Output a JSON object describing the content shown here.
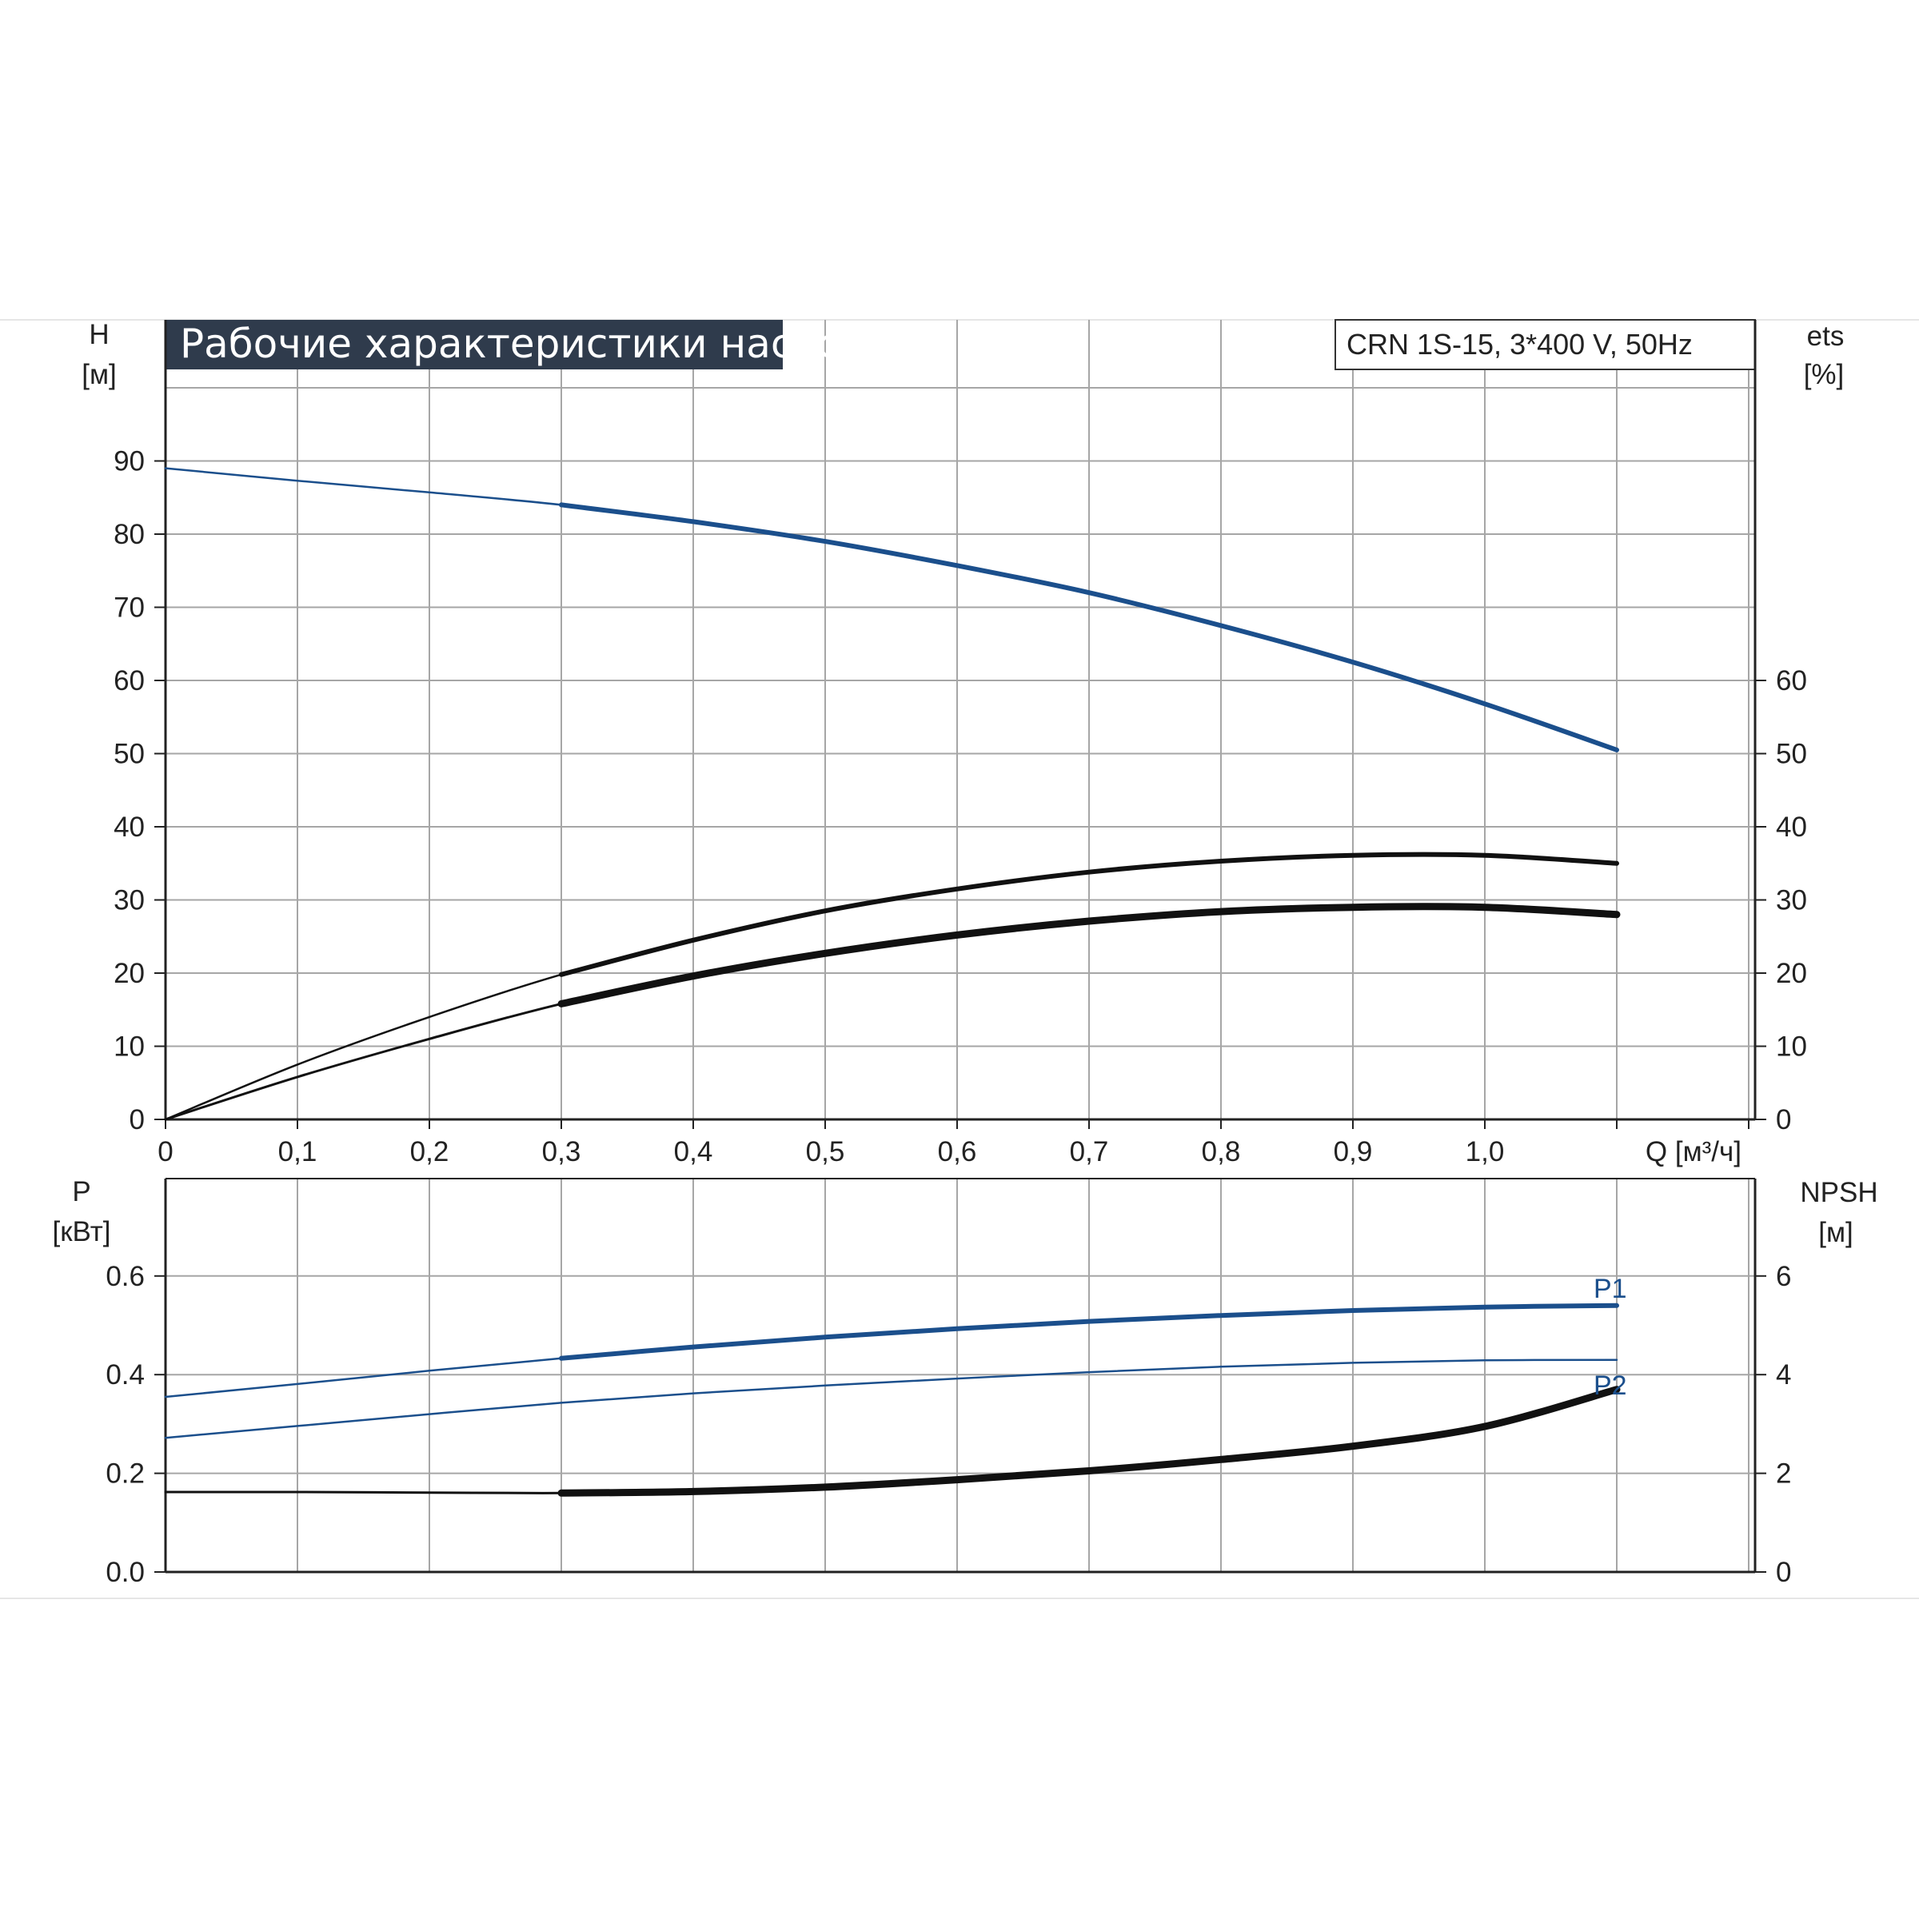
{
  "title": "Рабочие характеристики насоса",
  "model": "CRN 1S-15, 3*400 V, 50Hz",
  "colors": {
    "title_bg": "#2f3b4c",
    "blue_curve": "#1b4f8c",
    "black_curve": "#111111",
    "grid": "#a6a6a6"
  },
  "chart_data": [
    {
      "type": "line",
      "panel": "top",
      "x_axis": {
        "label": "Q [м³/ч]",
        "ticks": [
          "0",
          "0,1",
          "0,2",
          "0,3",
          "0,4",
          "0,5",
          "0,6",
          "0,7",
          "0,8",
          "0,9",
          "1,0"
        ],
        "range": [
          0,
          1.2
        ]
      },
      "y_left": {
        "label_line1": "H",
        "label_line2": "[м]",
        "ticks": [
          "0",
          "10",
          "20",
          "30",
          "40",
          "50",
          "60",
          "70",
          "80",
          "90"
        ],
        "range": [
          0,
          100
        ]
      },
      "y_right": {
        "label_line1": "ets",
        "label_line2": "[%]",
        "ticks": [
          "0",
          "10",
          "20",
          "30",
          "40",
          "50",
          "60"
        ],
        "range": [
          0,
          100
        ]
      },
      "grid": true,
      "series": [
        {
          "axis": "left",
          "color": "#1b4f8c",
          "x": [
            0,
            0.1,
            0.2,
            0.3,
            0.4,
            0.5,
            0.6,
            0.7,
            0.8,
            0.9,
            1.0,
            1.1
          ],
          "y": [
            89,
            87.3,
            85.7,
            84,
            81.7,
            79,
            75.7,
            72,
            67.5,
            62.5,
            56.8,
            50.5
          ],
          "bold_from": 0.3
        },
        {
          "axis": "right",
          "color": "#111111",
          "x": [
            0,
            0.1,
            0.2,
            0.3,
            0.4,
            0.5,
            0.6,
            0.7,
            0.8,
            0.9,
            1.0,
            1.1
          ],
          "y": [
            0,
            7.5,
            14,
            19.8,
            24.5,
            28.5,
            31.5,
            33.8,
            35.3,
            36.1,
            36.1,
            35
          ],
          "bold_from": 0.3
        },
        {
          "axis": "right",
          "color": "#111111",
          "x": [
            0,
            0.1,
            0.2,
            0.3,
            0.4,
            0.5,
            0.6,
            0.7,
            0.8,
            0.9,
            1.0,
            1.1
          ],
          "y": [
            0,
            5.8,
            11,
            15.8,
            19.6,
            22.7,
            25.2,
            27.1,
            28.4,
            29,
            29,
            28
          ],
          "bold_from": 0.3,
          "heavy": true
        }
      ]
    },
    {
      "type": "line",
      "panel": "bottom",
      "x_axis": {
        "range": [
          0,
          1.2
        ]
      },
      "y_left": {
        "label_line1": "P",
        "label_line2": "[кВт]",
        "ticks": [
          "0.0",
          "0.2",
          "0.4",
          "0.6"
        ],
        "range": [
          0,
          0.8
        ]
      },
      "y_right": {
        "label_line1": "NPSH",
        "label_line2": "[м]",
        "ticks": [
          "0",
          "2",
          "4",
          "6"
        ],
        "range": [
          0,
          8
        ]
      },
      "grid": true,
      "series": [
        {
          "name": "P1",
          "axis": "left",
          "color": "#1b4f8c",
          "x": [
            0,
            0.1,
            0.2,
            0.3,
            0.4,
            0.5,
            0.6,
            0.7,
            0.8,
            0.9,
            1.0,
            1.1
          ],
          "y": [
            0.355,
            0.381,
            0.408,
            0.433,
            0.456,
            0.476,
            0.493,
            0.508,
            0.52,
            0.53,
            0.537,
            0.54
          ],
          "bold_from": 0.3
        },
        {
          "name": "P2",
          "axis": "left",
          "color": "#1b4f8c",
          "x": [
            0,
            0.1,
            0.2,
            0.3,
            0.4,
            0.5,
            0.6,
            0.7,
            0.8,
            0.9,
            1.0,
            1.1
          ],
          "y": [
            0.272,
            0.296,
            0.32,
            0.343,
            0.362,
            0.378,
            0.392,
            0.405,
            0.416,
            0.424,
            0.429,
            0.43
          ],
          "bold_from": 2
        },
        {
          "axis": "right",
          "color": "#111111",
          "x": [
            0,
            0.1,
            0.2,
            0.3,
            0.4,
            0.5,
            0.6,
            0.7,
            0.8,
            0.9,
            1.0,
            1.1
          ],
          "y": [
            1.62,
            1.62,
            1.61,
            1.6,
            1.63,
            1.72,
            1.87,
            2.05,
            2.28,
            2.55,
            2.95,
            3.7
          ],
          "bold_from": 0.3,
          "heavy": true
        }
      ]
    }
  ]
}
